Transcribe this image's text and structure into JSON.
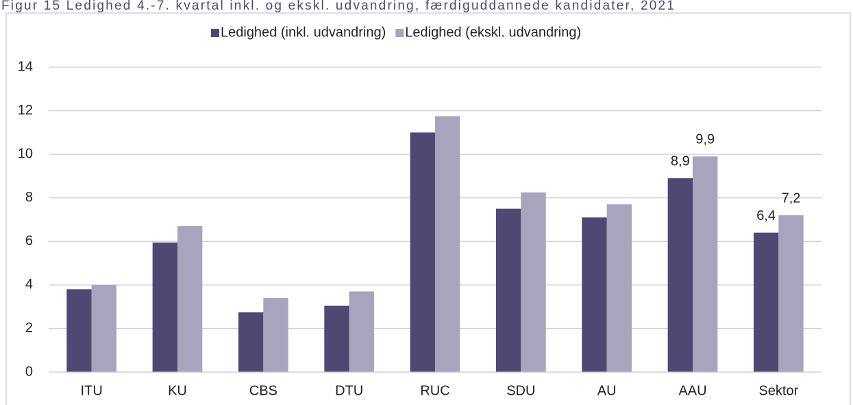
{
  "chart_data": {
    "type": "bar",
    "title": "Figur 15 Ledighed 4.-7. kvartal inkl. og ekskl. udvandring, færdiguddannede kandidater, 2021",
    "categories": [
      "ITU",
      "KU",
      "CBS",
      "DTU",
      "RUC",
      "SDU",
      "AU",
      "AAU",
      "Sektor"
    ],
    "series": [
      {
        "name": "Ledighed (inkl. udvandring)",
        "color": "#4e4872",
        "values": [
          3.8,
          5.95,
          2.75,
          3.05,
          11.0,
          7.5,
          7.1,
          8.9,
          6.4
        ],
        "value_labels": [
          null,
          null,
          null,
          null,
          null,
          null,
          null,
          "8,9",
          "6,4"
        ]
      },
      {
        "name": "Ledighed (ekskl. udvandring)",
        "color": "#a9a4bd",
        "values": [
          4.0,
          6.7,
          3.4,
          3.7,
          11.75,
          8.25,
          7.7,
          9.9,
          7.2
        ],
        "value_labels": [
          null,
          null,
          null,
          null,
          null,
          null,
          null,
          "9,9",
          "7,2"
        ]
      }
    ],
    "ylim": [
      0,
      14
    ],
    "yticks": [
      0,
      2,
      4,
      6,
      8,
      10,
      12,
      14
    ],
    "grid": true,
    "legend": "top"
  }
}
